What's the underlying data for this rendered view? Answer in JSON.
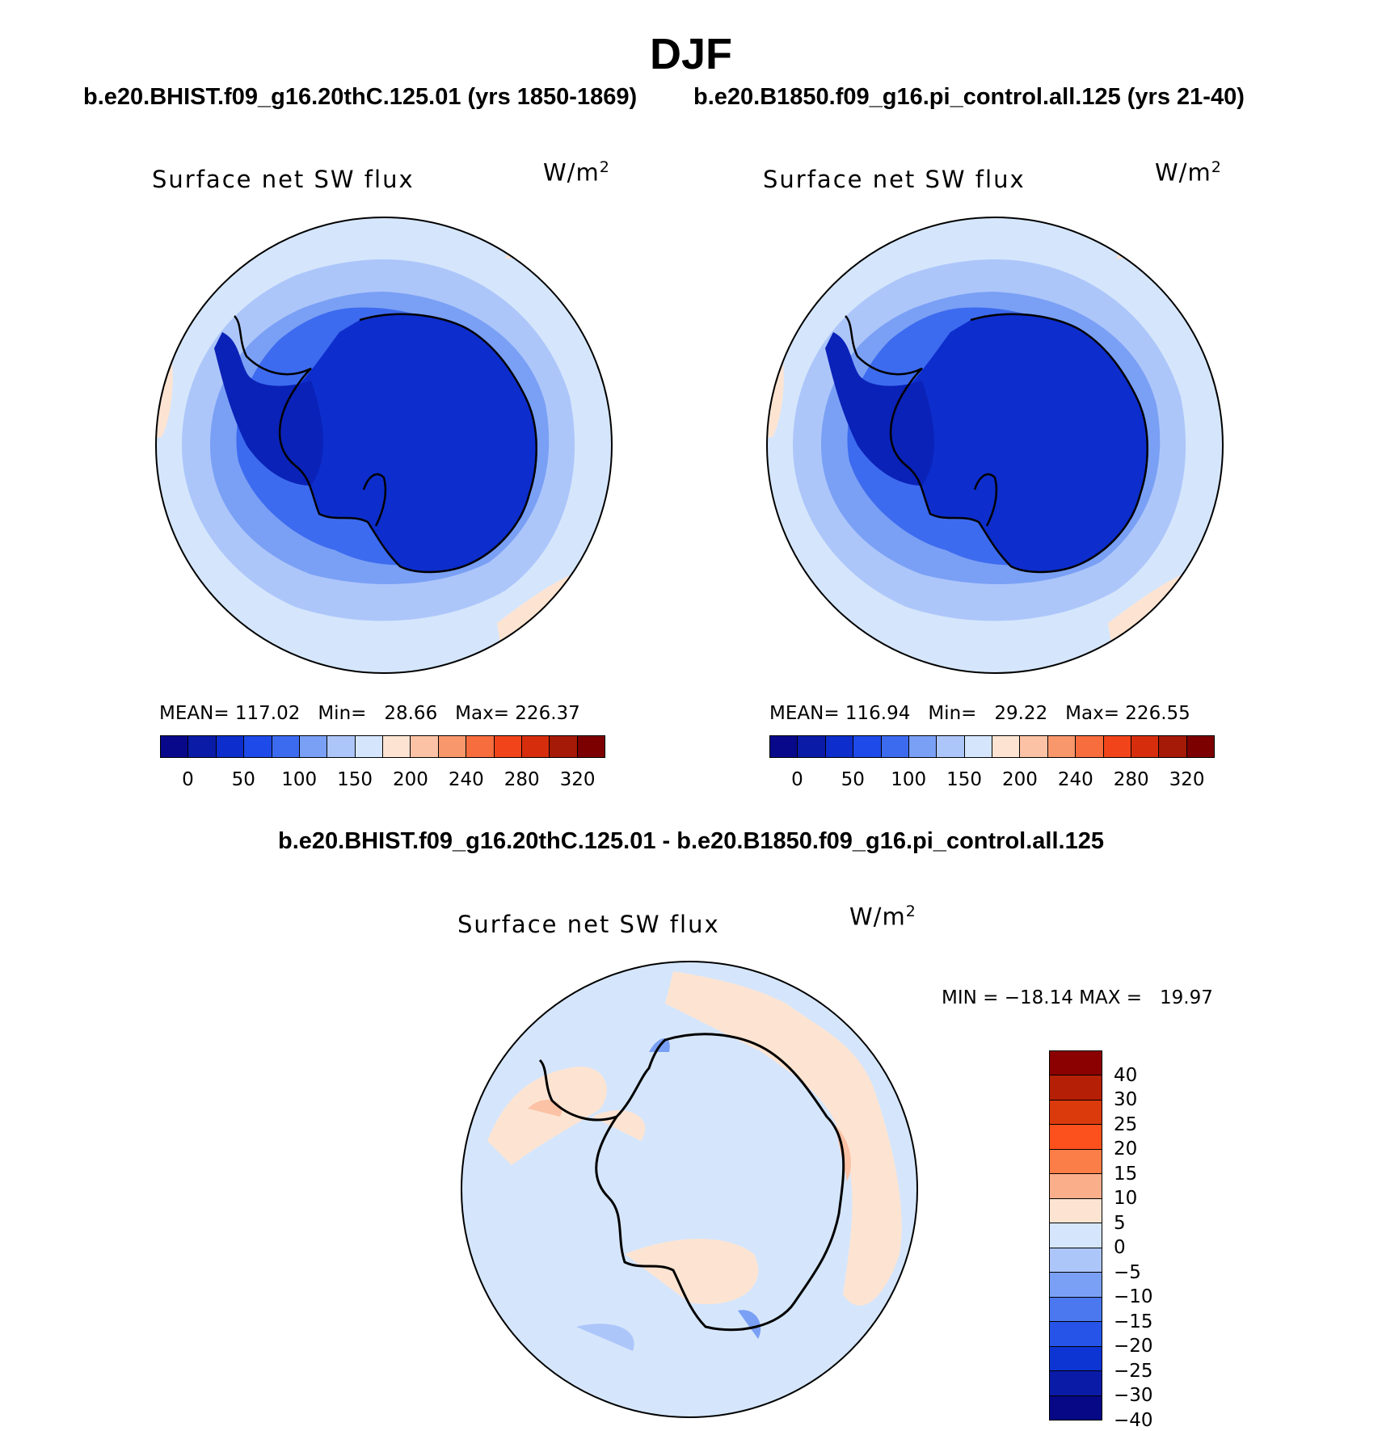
{
  "title": "DJF",
  "panel_titles": {
    "left": "b.e20.BHIST.f09_g16.20thC.125.01 (yrs 1850-1869)",
    "right": "b.e20.B1850.f09_g16.pi_control.all.125 (yrs 21-40)",
    "diff": "b.e20.BHIST.f09_g16.20thC.125.01 - b.e20.B1850.f09_g16.pi_control.all.125"
  },
  "variable": "Surface net SW flux",
  "units": {
    "base": "W/m",
    "exp": "2"
  },
  "panels": {
    "left": {
      "mean_label": "MEAN=",
      "mean": "117.02",
      "min_label": "Min=",
      "min": "28.66",
      "max_label": "Max=",
      "max": "226.37"
    },
    "right": {
      "mean_label": "MEAN=",
      "mean": "116.94",
      "min_label": "Min=",
      "min": "29.22",
      "max_label": "Max=",
      "max": "226.55"
    },
    "diff": {
      "text": "MIN = −18.14 MAX =   19.97"
    }
  },
  "colorbar_main": {
    "colors": [
      "#08088a",
      "#0a1ba8",
      "#0d2ecc",
      "#1d4ae8",
      "#3d6bef",
      "#7aa0f5",
      "#adc6fa",
      "#d5e6fc",
      "#fde4d2",
      "#fcc2a5",
      "#f8976b",
      "#f76d3e",
      "#f2441a",
      "#d62e0d",
      "#a51a06",
      "#7c0000"
    ],
    "ticks": [
      "0",
      "50",
      "100",
      "150",
      "200",
      "240",
      "280",
      "320"
    ]
  },
  "colorbar_diff": {
    "colors": [
      "#8b0000",
      "#b51f05",
      "#db3a0d",
      "#fc511d",
      "#fb7d48",
      "#fbae8a",
      "#fde4d2",
      "#d5e6fc",
      "#adc6fa",
      "#7aa0f5",
      "#4b77ef",
      "#2654e8",
      "#0d35d4",
      "#0a1ba8",
      "#060885"
    ],
    "ticks": [
      "40",
      "30",
      "25",
      "20",
      "15",
      "10",
      "5",
      "0",
      "−5",
      "−10",
      "−15",
      "−20",
      "−25",
      "−30",
      "−40"
    ]
  },
  "palette": {
    "ocean_light": "#d5e6fc",
    "ocean_mid": "#adc6fa",
    "ocean_blue": "#7aa0f5",
    "near_ice": "#3d6bef",
    "ice_edge": "#1d4ae8",
    "continent": "#0d2ecc",
    "west_ant": "#0a22b8",
    "warm": "#fde4d2",
    "warm_mid": "#fcc2a5",
    "warm_hot": "#f8976b"
  }
}
